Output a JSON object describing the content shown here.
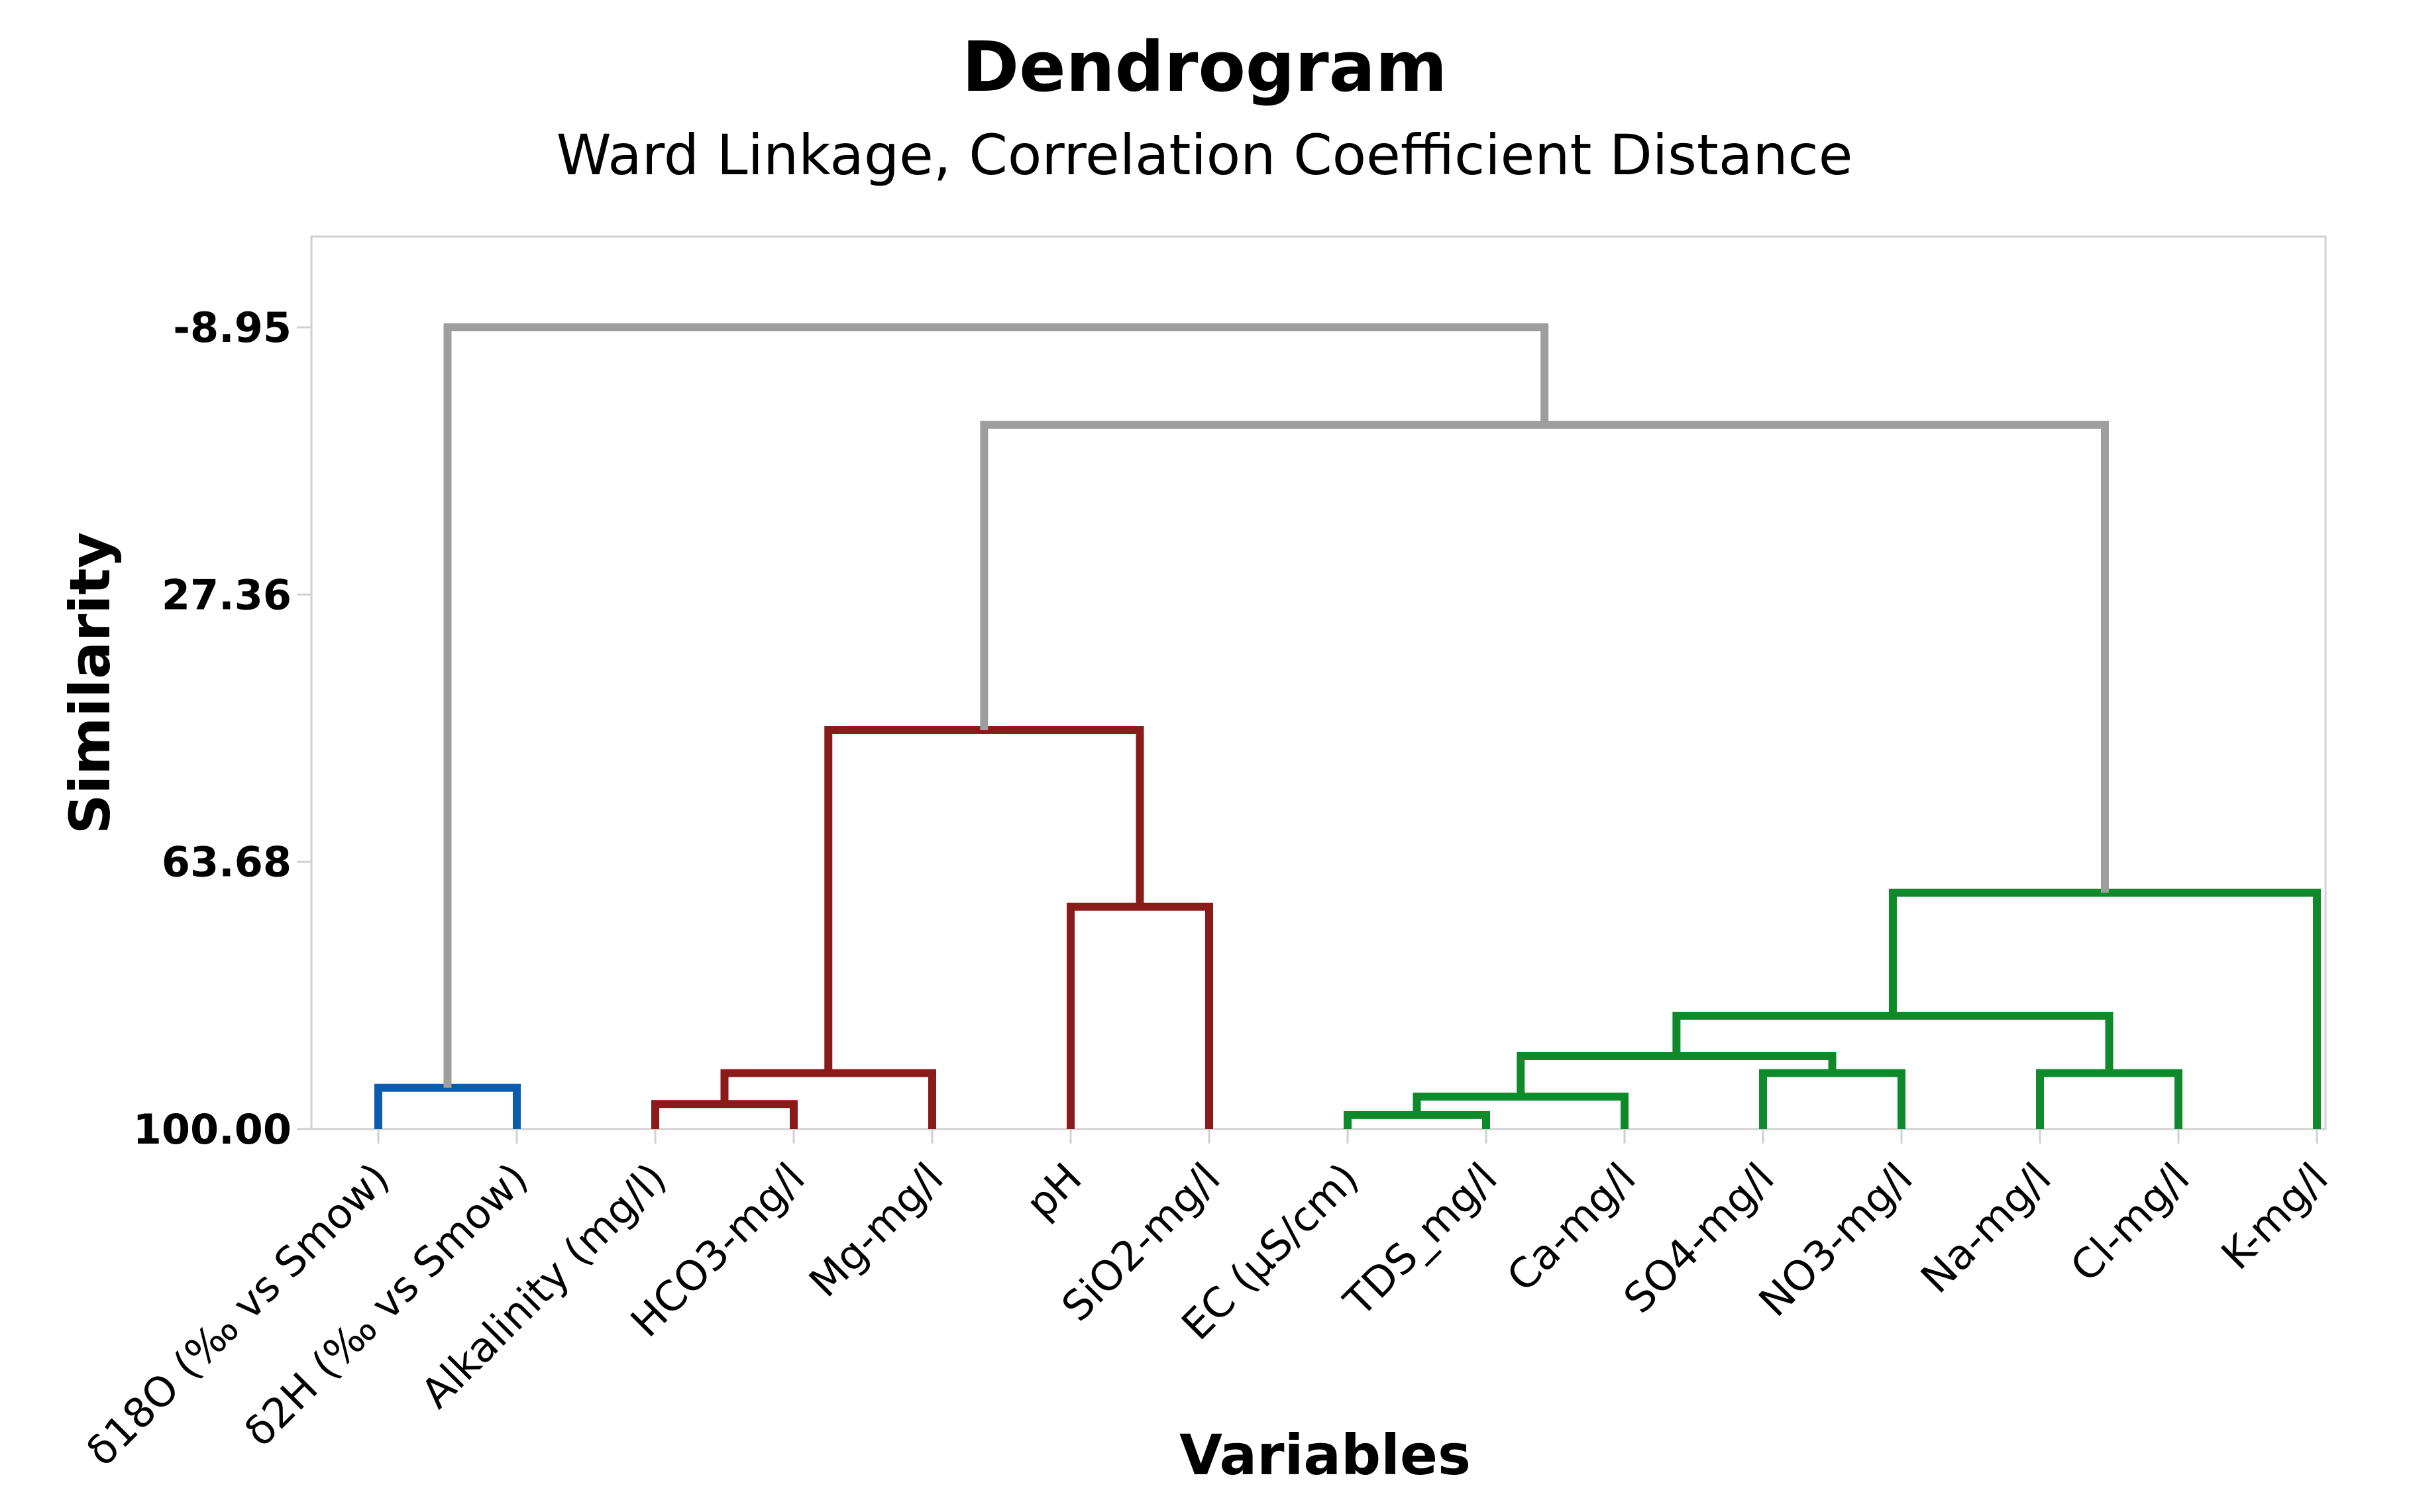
{
  "chart_data": {
    "type": "dendrogram",
    "title": "Dendrogram",
    "subtitle": "Ward Linkage, Correlation Coefficient Distance",
    "xlabel": "Variables",
    "ylabel": "Similarity",
    "yticks": [
      "-8.95",
      "27.36",
      "63.68",
      "100.00"
    ],
    "ylim": [
      100.0,
      -18.0
    ],
    "leaves": [
      "δ18O (‰ vs Smow)",
      "δ2H (‰ vs Smow)",
      "Alkalinity (mg/l)",
      "HCO3-mg/l",
      "Mg-mg/l",
      "pH",
      "SiO2-mg/l",
      "EC (µS/cm)",
      "TDS_mg/l",
      "Ca-mg/l",
      "SO4-mg/l",
      "NO3-mg/l",
      "Na-mg/l",
      "Cl-mg/l",
      "K-mg/l"
    ],
    "clusters": [
      {
        "id": "C1",
        "left": "L7",
        "right": "L8",
        "similarity": 98.1,
        "group": "green"
      },
      {
        "id": "C2",
        "left": "L2",
        "right": "L3",
        "similarity": 96.6,
        "group": "red"
      },
      {
        "id": "C3",
        "left": "C1",
        "right": "L9",
        "similarity": 95.6,
        "group": "green"
      },
      {
        "id": "C4",
        "left": "L0",
        "right": "L1",
        "similarity": 94.4,
        "group": "blue"
      },
      {
        "id": "C5",
        "left": "C2",
        "right": "L4",
        "similarity": 92.4,
        "group": "red"
      },
      {
        "id": "C6",
        "left": "L10",
        "right": "L11",
        "similarity": 92.4,
        "group": "green"
      },
      {
        "id": "C7",
        "left": "L12",
        "right": "L13",
        "similarity": 92.4,
        "group": "green"
      },
      {
        "id": "C8",
        "left": "C3",
        "right": "C6",
        "similarity": 90.1,
        "group": "green"
      },
      {
        "id": "C9",
        "left": "C8",
        "right": "C7",
        "similarity": 84.6,
        "group": "green"
      },
      {
        "id": "C10",
        "left": "C9",
        "right": "L14",
        "similarity": 67.9,
        "group": "green"
      },
      {
        "id": "C11",
        "left": "L5",
        "right": "L6",
        "similarity": 69.8,
        "group": "red"
      },
      {
        "id": "C12",
        "left": "C5",
        "right": "C11",
        "similarity": 45.8,
        "group": "red"
      },
      {
        "id": "C13",
        "left": "C12",
        "right": "C10",
        "similarity": 4.3,
        "group": "gray"
      },
      {
        "id": "C14",
        "left": "C4",
        "right": "C13",
        "similarity": -8.95,
        "group": "gray"
      }
    ],
    "colors": {
      "blue": "#0b5cad",
      "red": "#8b1a1a",
      "green": "#0e8a2a",
      "gray": "#9e9e9e",
      "frame": "#d0d0d0"
    },
    "grid": false
  }
}
